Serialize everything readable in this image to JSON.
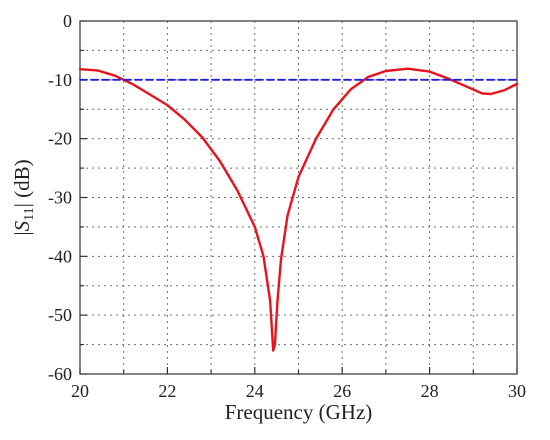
{
  "chart_data": {
    "type": "line",
    "xlabel": "Frequency (GHz)",
    "ylabel": {
      "prefix": "|",
      "symbol": "S",
      "subscript": "11",
      "suffix": "| (dB)"
    },
    "xlim": [
      20,
      30
    ],
    "ylim": [
      -60,
      0
    ],
    "xticks": [
      20,
      22,
      24,
      26,
      28,
      30
    ],
    "yticks": [
      0,
      -10,
      -20,
      -30,
      -40,
      -50,
      -60
    ],
    "grid": true,
    "grid_style": "dotted",
    "legend": "none",
    "series": [
      {
        "color": "#e8141c",
        "style": "solid",
        "x": [
          20.0,
          20.4,
          20.8,
          21.2,
          21.6,
          22.0,
          22.4,
          22.8,
          23.2,
          23.6,
          24.0,
          24.2,
          24.35,
          24.42,
          24.46,
          24.52,
          24.6,
          24.75,
          25.0,
          25.4,
          25.8,
          26.2,
          26.6,
          27.0,
          27.5,
          28.0,
          28.4,
          28.8,
          29.2,
          29.4,
          29.7,
          30.0
        ],
        "y": [
          -8.2,
          -8.4,
          -9.3,
          -10.7,
          -12.5,
          -14.3,
          -16.8,
          -19.8,
          -23.8,
          -28.8,
          -35.0,
          -40.0,
          -47.5,
          -56.0,
          -55.0,
          -47.5,
          -40.5,
          -33.0,
          -26.5,
          -20.0,
          -15.0,
          -11.6,
          -9.5,
          -8.5,
          -8.1,
          -8.6,
          -9.7,
          -11.0,
          -12.3,
          -12.4,
          -11.8,
          -10.7
        ]
      },
      {
        "color": "#1f1fd8",
        "style": "dashed",
        "x": [
          20,
          30
        ],
        "y": [
          -10,
          -10
        ]
      }
    ]
  }
}
